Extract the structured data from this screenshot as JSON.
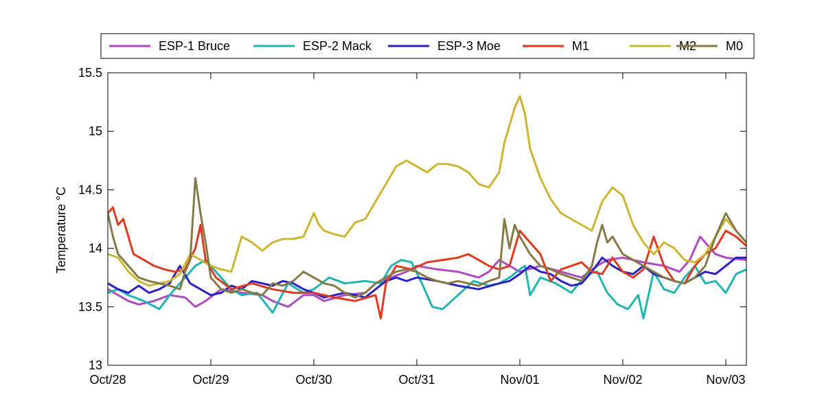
{
  "chart_data": {
    "type": "line",
    "title": "",
    "xlabel": "",
    "ylabel": "Temperature °C",
    "ylim": [
      13,
      15.5
    ],
    "xlim": [
      0,
      6.2
    ],
    "x_ticks": [
      0,
      1,
      2,
      3,
      4,
      5,
      6
    ],
    "x_tick_labels": [
      "Oct/28",
      "Oct/29",
      "Oct/30",
      "Oct/31",
      "Nov/01",
      "Nov/02",
      "Nov/03"
    ],
    "y_ticks": [
      13,
      13.5,
      14,
      14.5,
      15,
      15.5
    ],
    "y_tick_labels": [
      "13",
      "13.5",
      "14",
      "14.5",
      "15",
      "15.5"
    ],
    "x_unit": "days since Oct/28 00:00",
    "legend_position": "top (outside plot, single row)",
    "series": [
      {
        "name": "ESP-1 Bruce",
        "color": "#b04ac0",
        "x": [
          0,
          0.1,
          0.2,
          0.3,
          0.45,
          0.6,
          0.75,
          0.85,
          0.95,
          1.1,
          1.3,
          1.5,
          1.6,
          1.75,
          1.9,
          2.0,
          2.1,
          2.3,
          2.5,
          2.6,
          2.75,
          2.9,
          3.0,
          3.2,
          3.4,
          3.6,
          3.7,
          3.8,
          3.9,
          4.0,
          4.2,
          4.4,
          4.6,
          4.75,
          4.85,
          5.0,
          5.2,
          5.4,
          5.55,
          5.65,
          5.75,
          5.9,
          6.0,
          6.2
        ],
        "values": [
          13.65,
          13.6,
          13.55,
          13.52,
          13.55,
          13.6,
          13.58,
          13.5,
          13.55,
          13.65,
          13.62,
          13.6,
          13.55,
          13.5,
          13.6,
          13.6,
          13.55,
          13.6,
          13.62,
          13.7,
          13.75,
          13.8,
          13.85,
          13.82,
          13.8,
          13.75,
          13.8,
          13.9,
          13.85,
          13.8,
          13.85,
          13.8,
          13.75,
          13.85,
          13.9,
          13.92,
          13.88,
          13.85,
          13.8,
          13.9,
          14.1,
          13.95,
          13.92,
          13.9
        ]
      },
      {
        "name": "ESP-2 Mack",
        "color": "#1fb5b0",
        "x": [
          0,
          0.1,
          0.2,
          0.35,
          0.5,
          0.6,
          0.75,
          0.85,
          0.95,
          1.1,
          1.2,
          1.3,
          1.45,
          1.6,
          1.75,
          1.9,
          2.0,
          2.15,
          2.3,
          2.5,
          2.65,
          2.75,
          2.85,
          2.95,
          3.05,
          3.15,
          3.25,
          3.4,
          3.55,
          3.7,
          3.8,
          3.9,
          4.0,
          4.05,
          4.1,
          4.2,
          4.35,
          4.5,
          4.65,
          4.75,
          4.85,
          4.95,
          5.05,
          5.15,
          5.2,
          5.3,
          5.4,
          5.5,
          5.6,
          5.7,
          5.8,
          5.9,
          6.0,
          6.1,
          6.2
        ],
        "values": [
          13.62,
          13.65,
          13.6,
          13.55,
          13.48,
          13.6,
          13.75,
          13.85,
          13.9,
          13.75,
          13.65,
          13.6,
          13.62,
          13.45,
          13.7,
          13.62,
          13.65,
          13.75,
          13.7,
          13.72,
          13.7,
          13.85,
          13.9,
          13.88,
          13.7,
          13.5,
          13.48,
          13.6,
          13.72,
          13.68,
          13.7,
          13.75,
          13.82,
          13.85,
          13.6,
          13.75,
          13.7,
          13.62,
          13.78,
          13.8,
          13.62,
          13.52,
          13.48,
          13.6,
          13.4,
          13.8,
          13.65,
          13.62,
          13.75,
          13.85,
          13.7,
          13.72,
          13.62,
          13.78,
          13.82
        ]
      },
      {
        "name": "ESP-3 Moe",
        "color": "#2a21c4",
        "x": [
          0,
          0.1,
          0.2,
          0.3,
          0.4,
          0.5,
          0.6,
          0.7,
          0.8,
          0.9,
          1.0,
          1.1,
          1.2,
          1.3,
          1.4,
          1.5,
          1.6,
          1.7,
          1.8,
          1.9,
          2.0,
          2.1,
          2.2,
          2.3,
          2.5,
          2.6,
          2.7,
          2.8,
          2.9,
          3.0,
          3.2,
          3.4,
          3.6,
          3.8,
          3.9,
          4.0,
          4.1,
          4.2,
          4.3,
          4.4,
          4.5,
          4.6,
          4.7,
          4.8,
          4.9,
          5.0,
          5.1,
          5.2,
          5.3,
          5.4,
          5.5,
          5.6,
          5.7,
          5.8,
          5.9,
          6.0,
          6.1,
          6.2
        ],
        "values": [
          13.7,
          13.65,
          13.62,
          13.68,
          13.62,
          13.65,
          13.7,
          13.85,
          13.7,
          13.65,
          13.6,
          13.62,
          13.68,
          13.65,
          13.72,
          13.7,
          13.68,
          13.72,
          13.7,
          13.65,
          13.62,
          13.58,
          13.6,
          13.62,
          13.58,
          13.65,
          13.72,
          13.75,
          13.72,
          13.75,
          13.72,
          13.68,
          13.65,
          13.7,
          13.72,
          13.78,
          13.85,
          13.8,
          13.78,
          13.72,
          13.68,
          13.7,
          13.8,
          13.92,
          13.85,
          13.8,
          13.78,
          13.85,
          13.78,
          13.75,
          13.72,
          13.7,
          13.75,
          13.8,
          13.78,
          13.85,
          13.92,
          13.92
        ]
      },
      {
        "name": "M1",
        "color": "#e03a1e",
        "x": [
          0,
          0.05,
          0.1,
          0.15,
          0.25,
          0.35,
          0.45,
          0.55,
          0.65,
          0.75,
          0.85,
          0.9,
          0.95,
          1.05,
          1.2,
          1.4,
          1.6,
          1.8,
          2.0,
          2.2,
          2.4,
          2.6,
          2.65,
          2.7,
          2.8,
          2.95,
          3.1,
          3.25,
          3.4,
          3.5,
          3.6,
          3.7,
          3.8,
          3.9,
          3.95,
          4.0,
          4.1,
          4.2,
          4.3,
          4.4,
          4.5,
          4.6,
          4.7,
          4.8,
          4.9,
          5.0,
          5.1,
          5.2,
          5.3,
          5.4,
          5.5,
          5.6,
          5.7,
          5.8,
          5.9,
          6.0,
          6.1,
          6.2
        ],
        "values": [
          14.3,
          14.35,
          14.2,
          14.25,
          13.95,
          13.9,
          13.85,
          13.82,
          13.8,
          13.82,
          14.0,
          14.2,
          13.9,
          13.75,
          13.65,
          13.7,
          13.65,
          13.62,
          13.62,
          13.58,
          13.55,
          13.6,
          13.4,
          13.7,
          13.85,
          13.82,
          13.88,
          13.9,
          13.92,
          13.95,
          13.9,
          13.85,
          13.82,
          13.85,
          14.0,
          14.15,
          14.05,
          13.95,
          13.72,
          13.82,
          13.85,
          13.88,
          13.8,
          13.78,
          13.92,
          13.8,
          13.75,
          13.82,
          14.1,
          13.85,
          13.72,
          13.7,
          13.85,
          13.95,
          14.0,
          14.15,
          14.1,
          14.02
        ]
      },
      {
        "name": "M2",
        "color": "#cdb52f",
        "x": [
          0,
          0.1,
          0.2,
          0.3,
          0.4,
          0.5,
          0.6,
          0.7,
          0.8,
          0.9,
          1.0,
          1.1,
          1.2,
          1.3,
          1.4,
          1.5,
          1.6,
          1.7,
          1.8,
          1.9,
          2.0,
          2.05,
          2.1,
          2.2,
          2.3,
          2.4,
          2.5,
          2.6,
          2.7,
          2.8,
          2.9,
          3.0,
          3.1,
          3.2,
          3.3,
          3.4,
          3.5,
          3.6,
          3.7,
          3.8,
          3.85,
          3.9,
          3.95,
          4.0,
          4.05,
          4.1,
          4.2,
          4.3,
          4.4,
          4.5,
          4.6,
          4.7,
          4.8,
          4.9,
          5.0,
          5.1,
          5.2,
          5.3,
          5.4,
          5.5,
          5.6,
          5.7,
          5.8,
          5.9,
          6.0,
          6.1,
          6.2
        ],
        "values": [
          13.95,
          13.92,
          13.8,
          13.72,
          13.68,
          13.7,
          13.72,
          13.78,
          13.95,
          13.9,
          13.85,
          13.82,
          13.8,
          14.1,
          14.05,
          13.98,
          14.05,
          14.08,
          14.08,
          14.1,
          14.3,
          14.2,
          14.15,
          14.12,
          14.1,
          14.22,
          14.25,
          14.4,
          14.55,
          14.7,
          14.75,
          14.7,
          14.65,
          14.72,
          14.72,
          14.7,
          14.65,
          14.55,
          14.52,
          14.65,
          14.9,
          15.05,
          15.2,
          15.3,
          15.15,
          14.85,
          14.6,
          14.42,
          14.3,
          14.25,
          14.2,
          14.15,
          14.4,
          14.52,
          14.45,
          14.2,
          14.05,
          13.95,
          14.05,
          14.0,
          13.9,
          13.88,
          13.95,
          14.1,
          14.25,
          14.15,
          14.05
        ]
      },
      {
        "name": "M0",
        "color": "#857a45",
        "x": [
          0,
          0.05,
          0.1,
          0.2,
          0.3,
          0.4,
          0.5,
          0.6,
          0.7,
          0.75,
          0.8,
          0.85,
          0.9,
          0.95,
          1.0,
          1.1,
          1.2,
          1.3,
          1.4,
          1.5,
          1.6,
          1.7,
          1.8,
          1.9,
          2.0,
          2.1,
          2.2,
          2.3,
          2.4,
          2.5,
          2.6,
          2.7,
          2.8,
          2.9,
          3.0,
          3.1,
          3.2,
          3.3,
          3.4,
          3.5,
          3.6,
          3.7,
          3.8,
          3.85,
          3.9,
          3.95,
          4.0,
          4.1,
          4.2,
          4.3,
          4.4,
          4.5,
          4.6,
          4.7,
          4.75,
          4.8,
          4.85,
          4.9,
          5.0,
          5.1,
          5.2,
          5.3,
          5.4,
          5.5,
          5.6,
          5.7,
          5.8,
          5.9,
          6.0,
          6.1,
          6.2
        ],
        "values": [
          14.3,
          14.1,
          13.95,
          13.85,
          13.75,
          13.72,
          13.7,
          13.68,
          13.65,
          13.8,
          13.9,
          14.6,
          14.3,
          14.05,
          13.75,
          13.65,
          13.62,
          13.65,
          13.62,
          13.6,
          13.7,
          13.68,
          13.72,
          13.8,
          13.75,
          13.7,
          13.68,
          13.62,
          13.58,
          13.62,
          13.7,
          13.75,
          13.8,
          13.82,
          13.8,
          13.75,
          13.72,
          13.7,
          13.72,
          13.7,
          13.68,
          13.72,
          13.75,
          14.25,
          14.0,
          14.2,
          14.1,
          13.95,
          13.85,
          13.82,
          13.78,
          13.75,
          13.72,
          13.85,
          14.05,
          14.2,
          14.05,
          14.1,
          13.95,
          13.9,
          13.85,
          13.8,
          13.75,
          13.72,
          13.7,
          13.75,
          13.85,
          14.1,
          14.3,
          14.15,
          14.05
        ]
      }
    ]
  }
}
